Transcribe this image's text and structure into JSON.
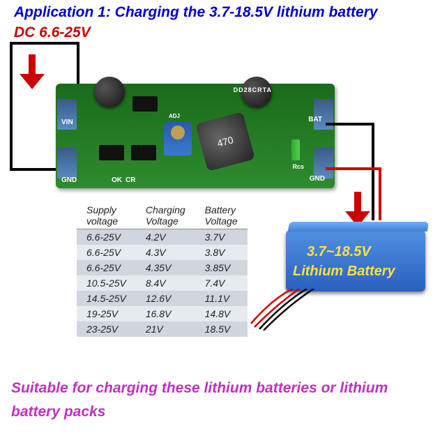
{
  "title": "Application 1: Charging the 3.7-18.5V lithium battery",
  "input_label": "DC 6.6-25V",
  "pcb": {
    "labels": {
      "vin": "VIN",
      "gnd_left": "GND",
      "bat": "BAT",
      "gnd_right": "GND",
      "ok": "OK",
      "cr": "CR",
      "adj": "ADJ",
      "model": "DD28CRTA",
      "rcs": "Rcs"
    },
    "inductor_label": "470",
    "pcb_color": "#2e8b2e"
  },
  "battery": {
    "line1": "3.7~18.5V",
    "line2": "Lithium Battery",
    "body_color": "#2a60c0",
    "text_color": "#ffe040"
  },
  "table": {
    "columns": [
      "Supply voltage",
      "Charging Voltage",
      "Battery Voltage"
    ],
    "header_bg": "#ffffff",
    "row_odd_bg": "#cfd6de",
    "row_even_bg": "#e6ebf0",
    "rows": [
      [
        "6.6-25V",
        "4.2V",
        "3.7V"
      ],
      [
        "6.6-25V",
        "4.3V",
        "3.8V"
      ],
      [
        "6.6-25V",
        "4.35V",
        "3.85V"
      ],
      [
        "10.5-25V",
        "8.4V",
        "7.4V"
      ],
      [
        "14.5-25V",
        "12.6V",
        "11.1V"
      ],
      [
        "19-25V",
        "16.8V",
        "14.8V"
      ],
      [
        "23-25V",
        "21V",
        "18.5V"
      ]
    ]
  },
  "footer": "Suitable for charging these lithium batteries or lithium battery packs",
  "colors": {
    "title": "#0000cc",
    "dc_label": "#cc0000",
    "footer": "#c030c0",
    "wire_black": "#000000",
    "wire_red": "#cc0000"
  }
}
